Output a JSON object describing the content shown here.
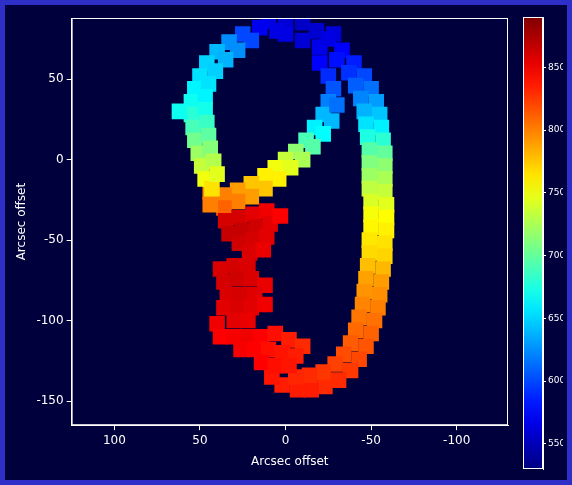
{
  "chart_data": {
    "type": "scatter",
    "x_label": "Arcsec offset",
    "y_label": "Arcsec offset",
    "xlim": [
      125,
      -130
    ],
    "xticks": [
      100,
      50,
      0,
      -50,
      -100
    ],
    "ylim": [
      -165,
      88
    ],
    "yticks": [
      50,
      0,
      -50,
      -100,
      -150
    ],
    "grid": false,
    "marker": "square",
    "colorbar_lim": [
      530,
      890
    ],
    "colorbar_ticks": [
      550,
      600,
      650,
      700,
      750,
      800,
      850
    ],
    "cells": [
      [
        10,
        86,
        565
      ],
      [
        0,
        87,
        560
      ],
      [
        -10,
        85,
        555
      ],
      [
        -18,
        80,
        558
      ],
      [
        0,
        78,
        565
      ],
      [
        -10,
        74,
        560
      ],
      [
        -20,
        70,
        568
      ],
      [
        -28,
        78,
        562
      ],
      [
        5,
        80,
        565
      ],
      [
        -25,
        75,
        565
      ],
      [
        -33,
        68,
        575
      ],
      [
        -40,
        60,
        585
      ],
      [
        -46,
        52,
        600
      ],
      [
        -50,
        44,
        615
      ],
      [
        -53,
        36,
        630
      ],
      [
        -55,
        28,
        645
      ],
      [
        -56,
        20,
        660
      ],
      [
        -57,
        12,
        680
      ],
      [
        -58,
        4,
        700
      ],
      [
        -58,
        -4,
        715
      ],
      [
        -58,
        -12,
        725
      ],
      [
        -58,
        -20,
        735
      ],
      [
        -59,
        -28,
        745
      ],
      [
        -59,
        -36,
        755
      ],
      [
        -59,
        -44,
        760
      ],
      [
        -58,
        -52,
        765
      ],
      [
        -58,
        -60,
        770
      ],
      [
        -57,
        -68,
        780
      ],
      [
        -56,
        -76,
        790
      ],
      [
        -55,
        -84,
        795
      ],
      [
        -54,
        -92,
        800
      ],
      [
        -52,
        -100,
        805
      ],
      [
        -50,
        -108,
        810
      ],
      [
        -47,
        -116,
        815
      ],
      [
        -43,
        -124,
        820
      ],
      [
        -38,
        -131,
        825
      ],
      [
        -31,
        -137,
        830
      ],
      [
        -23,
        -141,
        830
      ],
      [
        -15,
        -143,
        835
      ],
      [
        -7,
        -143,
        835
      ],
      [
        2,
        -140,
        835
      ],
      [
        8,
        -135,
        838
      ],
      [
        -30,
        62,
        580
      ],
      [
        -37,
        54,
        592
      ],
      [
        -41,
        46,
        608
      ],
      [
        -44,
        38,
        622
      ],
      [
        -46,
        30,
        638
      ],
      [
        -47,
        22,
        655
      ],
      [
        -48,
        14,
        675
      ],
      [
        -49,
        6,
        695
      ],
      [
        -49,
        -2,
        710
      ],
      [
        -49,
        -10,
        720
      ],
      [
        -49,
        -18,
        732
      ],
      [
        -50,
        -26,
        742
      ],
      [
        -50,
        -34,
        752
      ],
      [
        -50,
        -42,
        758
      ],
      [
        -49,
        -50,
        763
      ],
      [
        -49,
        -58,
        768
      ],
      [
        -48,
        -66,
        778
      ],
      [
        -47,
        -74,
        788
      ],
      [
        -46,
        -82,
        793
      ],
      [
        -45,
        -90,
        798
      ],
      [
        -43,
        -98,
        803
      ],
      [
        -41,
        -106,
        808
      ],
      [
        -38,
        -114,
        813
      ],
      [
        -34,
        -121,
        818
      ],
      [
        -29,
        -127,
        822
      ],
      [
        -22,
        -132,
        826
      ],
      [
        -14,
        -134,
        830
      ],
      [
        -6,
        -135,
        832
      ],
      [
        -20,
        60,
        575
      ],
      [
        -25,
        52,
        590
      ],
      [
        -28,
        44,
        605
      ],
      [
        -25,
        36,
        620
      ],
      [
        -22,
        28,
        640
      ],
      [
        -17,
        20,
        660
      ],
      [
        -12,
        12,
        690
      ],
      [
        -6,
        5,
        715
      ],
      [
        0,
        0,
        735
      ],
      [
        6,
        -5,
        750
      ],
      [
        12,
        -10,
        760
      ],
      [
        20,
        -15,
        775
      ],
      [
        28,
        -19,
        790
      ],
      [
        36,
        -22,
        800
      ],
      [
        44,
        -20,
        795
      ],
      [
        -30,
        34,
        615
      ],
      [
        -27,
        24,
        640
      ],
      [
        -22,
        16,
        665
      ],
      [
        -16,
        8,
        695
      ],
      [
        -10,
        0,
        725
      ],
      [
        -3,
        -5,
        745
      ],
      [
        4,
        -12,
        760
      ],
      [
        12,
        -18,
        775
      ],
      [
        20,
        -23,
        790
      ],
      [
        28,
        -26,
        800
      ],
      [
        36,
        -30,
        810
      ],
      [
        44,
        -28,
        800
      ],
      [
        15,
        82,
        570
      ],
      [
        25,
        78,
        600
      ],
      [
        33,
        73,
        625
      ],
      [
        40,
        67,
        640
      ],
      [
        46,
        60,
        650
      ],
      [
        50,
        52,
        655
      ],
      [
        53,
        44,
        662
      ],
      [
        55,
        36,
        670
      ],
      [
        55,
        28,
        680
      ],
      [
        54,
        20,
        690
      ],
      [
        53,
        12,
        705
      ],
      [
        51,
        4,
        720
      ],
      [
        49,
        -4,
        735
      ],
      [
        47,
        -12,
        750
      ],
      [
        43,
        -18,
        765
      ],
      [
        20,
        74,
        600
      ],
      [
        28,
        68,
        625
      ],
      [
        35,
        62,
        638
      ],
      [
        41,
        55,
        648
      ],
      [
        45,
        47,
        655
      ],
      [
        47,
        39,
        662
      ],
      [
        47,
        31,
        672
      ],
      [
        46,
        23,
        685
      ],
      [
        45,
        15,
        698
      ],
      [
        44,
        7,
        712
      ],
      [
        42,
        -1,
        728
      ],
      [
        40,
        -9,
        745
      ],
      [
        62,
        30,
        670
      ],
      [
        35,
        -38,
        860
      ],
      [
        27,
        -36,
        860
      ],
      [
        19,
        -34,
        855
      ],
      [
        11,
        -32,
        850
      ],
      [
        33,
        -46,
        865
      ],
      [
        25,
        -44,
        865
      ],
      [
        17,
        -42,
        862
      ],
      [
        9,
        -40,
        855
      ],
      [
        27,
        -52,
        862
      ],
      [
        19,
        -50,
        860
      ],
      [
        11,
        -48,
        855
      ],
      [
        21,
        -58,
        858
      ],
      [
        13,
        -56,
        852
      ],
      [
        3,
        -35,
        845
      ],
      [
        38,
        -68,
        858
      ],
      [
        30,
        -66,
        860
      ],
      [
        22,
        -66,
        858
      ],
      [
        36,
        -76,
        860
      ],
      [
        28,
        -74,
        862
      ],
      [
        20,
        -74,
        858
      ],
      [
        12,
        -78,
        852
      ],
      [
        34,
        -84,
        858
      ],
      [
        26,
        -84,
        860
      ],
      [
        18,
        -84,
        856
      ],
      [
        36,
        -92,
        855
      ],
      [
        28,
        -92,
        858
      ],
      [
        20,
        -92,
        855
      ],
      [
        12,
        -90,
        850
      ],
      [
        30,
        -100,
        855
      ],
      [
        22,
        -100,
        852
      ],
      [
        40,
        -102,
        850
      ],
      [
        38,
        -110,
        845
      ],
      [
        30,
        -110,
        848
      ],
      [
        22,
        -110,
        850
      ],
      [
        14,
        -110,
        845
      ],
      [
        6,
        -108,
        840
      ],
      [
        -2,
        -112,
        835
      ],
      [
        -10,
        -116,
        830
      ],
      [
        26,
        -118,
        848
      ],
      [
        18,
        -118,
        845
      ],
      [
        10,
        -118,
        840
      ],
      [
        2,
        -120,
        838
      ],
      [
        -6,
        -122,
        835
      ],
      [
        14,
        -126,
        845
      ],
      [
        6,
        -128,
        840
      ],
      [
        -2,
        -128,
        838
      ]
    ]
  }
}
